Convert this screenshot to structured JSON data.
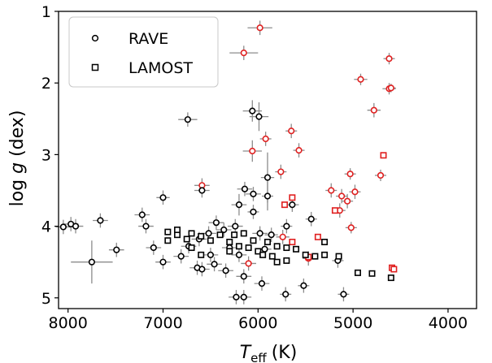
{
  "chart_data": {
    "type": "scatter",
    "x_axis": {
      "label_main": "T",
      "label_sub": "eff",
      "label_unit": "(K)",
      "range": [
        8100,
        3700
      ],
      "ticks": [
        8000,
        7000,
        6000,
        5000,
        4000
      ],
      "tick_labels": [
        "8000",
        "7000",
        "6000",
        "5000",
        "4000"
      ]
    },
    "y_axis": {
      "label_pre": "log ",
      "label_var": "g",
      "label_post": " (dex)",
      "range": [
        1,
        5.15
      ],
      "inverted": true,
      "ticks": [
        1,
        2,
        3,
        4,
        5
      ],
      "tick_labels": [
        "1",
        "2",
        "3",
        "4",
        "5"
      ]
    },
    "grid": false,
    "legend": {
      "placement": "top-left",
      "entries": [
        {
          "label": "RAVE",
          "marker": "circle"
        },
        {
          "label": "LAMOST",
          "marker": "square"
        }
      ]
    },
    "colors": {
      "black": "#000000",
      "red": "#e02020",
      "error": "#8c8c8c"
    },
    "series": [
      {
        "name": "RAVE",
        "marker": "circle",
        "points": [
          {
            "x": 5980,
            "y": 1.23,
            "xerr": 130,
            "yerr": 0.1,
            "color": "red"
          },
          {
            "x": 6150,
            "y": 1.58,
            "xerr": 150,
            "yerr": 0.1,
            "color": "red"
          },
          {
            "x": 4620,
            "y": 1.66,
            "xerr": 60,
            "yerr": 0.08,
            "color": "red"
          },
          {
            "x": 4920,
            "y": 1.95,
            "xerr": 70,
            "yerr": 0.08,
            "color": "red"
          },
          {
            "x": 4620,
            "y": 2.08,
            "xerr": 70,
            "yerr": 0.08,
            "color": "red"
          },
          {
            "x": 4600,
            "y": 2.07,
            "xerr": 50,
            "yerr": 0.06,
            "color": "red"
          },
          {
            "x": 4780,
            "y": 2.38,
            "xerr": 70,
            "yerr": 0.1,
            "color": "red"
          },
          {
            "x": 6060,
            "y": 2.39,
            "xerr": 100,
            "yerr": 0.15,
            "color": "black"
          },
          {
            "x": 5990,
            "y": 2.47,
            "xerr": 100,
            "yerr": 0.2,
            "color": "black"
          },
          {
            "x": 6740,
            "y": 2.51,
            "xerr": 100,
            "yerr": 0.1,
            "color": "black"
          },
          {
            "x": 5650,
            "y": 2.67,
            "xerr": 60,
            "yerr": 0.1,
            "color": "red"
          },
          {
            "x": 5920,
            "y": 2.78,
            "xerr": 60,
            "yerr": 0.1,
            "color": "red"
          },
          {
            "x": 6060,
            "y": 2.95,
            "xerr": 100,
            "yerr": 0.15,
            "color": "red"
          },
          {
            "x": 5570,
            "y": 2.94,
            "xerr": 60,
            "yerr": 0.1,
            "color": "red"
          },
          {
            "x": 5760,
            "y": 3.24,
            "xerr": 60,
            "yerr": 0.1,
            "color": "red"
          },
          {
            "x": 5030,
            "y": 3.27,
            "xerr": 60,
            "yerr": 0.08,
            "color": "red"
          },
          {
            "x": 4710,
            "y": 3.29,
            "xerr": 60,
            "yerr": 0.08,
            "color": "red"
          },
          {
            "x": 5900,
            "y": 3.32,
            "xerr": 70,
            "yerr": 0.35,
            "color": "black"
          },
          {
            "x": 6590,
            "y": 3.43,
            "xerr": 80,
            "yerr": 0.1,
            "color": "red"
          },
          {
            "x": 6590,
            "y": 3.5,
            "xerr": 80,
            "yerr": 0.1,
            "color": "black"
          },
          {
            "x": 5230,
            "y": 3.5,
            "xerr": 60,
            "yerr": 0.1,
            "color": "red"
          },
          {
            "x": 6140,
            "y": 3.48,
            "xerr": 80,
            "yerr": 0.1,
            "color": "black"
          },
          {
            "x": 6050,
            "y": 3.55,
            "xerr": 80,
            "yerr": 0.1,
            "color": "black"
          },
          {
            "x": 4980,
            "y": 3.52,
            "xerr": 60,
            "yerr": 0.1,
            "color": "red"
          },
          {
            "x": 5120,
            "y": 3.58,
            "xerr": 60,
            "yerr": 0.1,
            "color": "red"
          },
          {
            "x": 7000,
            "y": 3.6,
            "xerr": 70,
            "yerr": 0.1,
            "color": "black"
          },
          {
            "x": 5900,
            "y": 3.58,
            "xerr": 60,
            "yerr": 0.2,
            "color": "black"
          },
          {
            "x": 5060,
            "y": 3.65,
            "xerr": 60,
            "yerr": 0.1,
            "color": "red"
          },
          {
            "x": 5640,
            "y": 3.7,
            "xerr": 70,
            "yerr": 0.1,
            "color": "black"
          },
          {
            "x": 6200,
            "y": 3.7,
            "xerr": 80,
            "yerr": 0.15,
            "color": "black"
          },
          {
            "x": 5140,
            "y": 3.78,
            "xerr": 60,
            "yerr": 0.1,
            "color": "red"
          },
          {
            "x": 7220,
            "y": 3.84,
            "xerr": 80,
            "yerr": 0.1,
            "color": "black"
          },
          {
            "x": 6050,
            "y": 3.8,
            "xerr": 60,
            "yerr": 0.1,
            "color": "black"
          },
          {
            "x": 7660,
            "y": 3.92,
            "xerr": 80,
            "yerr": 0.1,
            "color": "black"
          },
          {
            "x": 5440,
            "y": 3.9,
            "xerr": 60,
            "yerr": 0.1,
            "color": "black"
          },
          {
            "x": 7970,
            "y": 3.97,
            "xerr": 80,
            "yerr": 0.1,
            "color": "black"
          },
          {
            "x": 6440,
            "y": 3.95,
            "xerr": 80,
            "yerr": 0.1,
            "color": "black"
          },
          {
            "x": 7920,
            "y": 4.0,
            "xerr": 80,
            "yerr": 0.1,
            "color": "black"
          },
          {
            "x": 8050,
            "y": 4.01,
            "xerr": 80,
            "yerr": 0.1,
            "color": "black"
          },
          {
            "x": 7180,
            "y": 4.0,
            "xerr": 80,
            "yerr": 0.1,
            "color": "black"
          },
          {
            "x": 6240,
            "y": 4.0,
            "xerr": 80,
            "yerr": 0.1,
            "color": "black"
          },
          {
            "x": 5700,
            "y": 4.0,
            "xerr": 60,
            "yerr": 0.1,
            "color": "black"
          },
          {
            "x": 5020,
            "y": 4.02,
            "xerr": 60,
            "yerr": 0.08,
            "color": "red"
          },
          {
            "x": 6360,
            "y": 4.05,
            "xerr": 80,
            "yerr": 0.1,
            "color": "black"
          },
          {
            "x": 6520,
            "y": 4.1,
            "xerr": 80,
            "yerr": 0.1,
            "color": "black"
          },
          {
            "x": 5980,
            "y": 4.1,
            "xerr": 80,
            "yerr": 0.1,
            "color": "black"
          },
          {
            "x": 5860,
            "y": 4.12,
            "xerr": 70,
            "yerr": 0.1,
            "color": "black"
          },
          {
            "x": 5740,
            "y": 4.15,
            "xerr": 70,
            "yerr": 0.1,
            "color": "red"
          },
          {
            "x": 6620,
            "y": 4.18,
            "xerr": 80,
            "yerr": 0.1,
            "color": "black"
          },
          {
            "x": 7100,
            "y": 4.3,
            "xerr": 80,
            "yerr": 0.1,
            "color": "black"
          },
          {
            "x": 7490,
            "y": 4.33,
            "xerr": 80,
            "yerr": 0.1,
            "color": "black"
          },
          {
            "x": 6730,
            "y": 4.28,
            "xerr": 80,
            "yerr": 0.1,
            "color": "black"
          },
          {
            "x": 6300,
            "y": 4.3,
            "xerr": 80,
            "yerr": 0.1,
            "color": "black"
          },
          {
            "x": 5930,
            "y": 4.32,
            "xerr": 70,
            "yerr": 0.1,
            "color": "black"
          },
          {
            "x": 6200,
            "y": 4.4,
            "xerr": 80,
            "yerr": 0.1,
            "color": "black"
          },
          {
            "x": 6500,
            "y": 4.4,
            "xerr": 80,
            "yerr": 0.1,
            "color": "black"
          },
          {
            "x": 6810,
            "y": 4.42,
            "xerr": 80,
            "yerr": 0.1,
            "color": "black"
          },
          {
            "x": 5470,
            "y": 4.45,
            "xerr": 60,
            "yerr": 0.1,
            "color": "red"
          },
          {
            "x": 5160,
            "y": 4.48,
            "xerr": 60,
            "yerr": 0.1,
            "color": "black"
          },
          {
            "x": 7000,
            "y": 4.5,
            "xerr": 80,
            "yerr": 0.1,
            "color": "black"
          },
          {
            "x": 7750,
            "y": 4.5,
            "xerr": 220,
            "yerr": 0.3,
            "color": "black"
          },
          {
            "x": 6100,
            "y": 4.52,
            "xerr": 80,
            "yerr": 0.1,
            "color": "red"
          },
          {
            "x": 6460,
            "y": 4.53,
            "xerr": 80,
            "yerr": 0.1,
            "color": "black"
          },
          {
            "x": 6640,
            "y": 4.58,
            "xerr": 80,
            "yerr": 0.1,
            "color": "black"
          },
          {
            "x": 6590,
            "y": 4.6,
            "xerr": 80,
            "yerr": 0.1,
            "color": "black"
          },
          {
            "x": 6340,
            "y": 4.62,
            "xerr": 80,
            "yerr": 0.1,
            "color": "black"
          },
          {
            "x": 6150,
            "y": 4.7,
            "xerr": 80,
            "yerr": 0.1,
            "color": "black"
          },
          {
            "x": 5960,
            "y": 4.8,
            "xerr": 80,
            "yerr": 0.1,
            "color": "black"
          },
          {
            "x": 5520,
            "y": 4.83,
            "xerr": 60,
            "yerr": 0.1,
            "color": "black"
          },
          {
            "x": 5710,
            "y": 4.95,
            "xerr": 60,
            "yerr": 0.1,
            "color": "black"
          },
          {
            "x": 5100,
            "y": 4.95,
            "xerr": 60,
            "yerr": 0.1,
            "color": "black"
          },
          {
            "x": 6230,
            "y": 4.99,
            "xerr": 80,
            "yerr": 0.1,
            "color": "black"
          },
          {
            "x": 6150,
            "y": 4.99,
            "xerr": 80,
            "yerr": 0.1,
            "color": "black"
          }
        ]
      },
      {
        "name": "LAMOST",
        "marker": "square",
        "points": [
          {
            "x": 4680,
            "y": 3.01,
            "color": "red"
          },
          {
            "x": 5640,
            "y": 3.6,
            "color": "red"
          },
          {
            "x": 5720,
            "y": 3.7,
            "color": "red"
          },
          {
            "x": 5190,
            "y": 3.78,
            "color": "red"
          },
          {
            "x": 5370,
            "y": 4.15,
            "color": "red"
          },
          {
            "x": 5640,
            "y": 4.22,
            "color": "red"
          },
          {
            "x": 5470,
            "y": 4.43,
            "color": "red"
          },
          {
            "x": 4590,
            "y": 4.58,
            "color": "red"
          },
          {
            "x": 4570,
            "y": 4.6,
            "color": "red"
          },
          {
            "x": 6050,
            "y": 4.2,
            "color": "black"
          },
          {
            "x": 6150,
            "y": 4.1,
            "color": "black"
          },
          {
            "x": 6250,
            "y": 4.12,
            "color": "black"
          },
          {
            "x": 5900,
            "y": 4.22,
            "color": "black"
          },
          {
            "x": 5800,
            "y": 4.28,
            "color": "black"
          },
          {
            "x": 5700,
            "y": 4.3,
            "color": "black"
          },
          {
            "x": 5600,
            "y": 4.32,
            "color": "black"
          },
          {
            "x": 6000,
            "y": 4.35,
            "color": "black"
          },
          {
            "x": 5950,
            "y": 4.4,
            "color": "black"
          },
          {
            "x": 5850,
            "y": 4.42,
            "color": "black"
          },
          {
            "x": 6400,
            "y": 4.12,
            "color": "black"
          },
          {
            "x": 6600,
            "y": 4.14,
            "color": "black"
          },
          {
            "x": 6700,
            "y": 4.1,
            "color": "black"
          },
          {
            "x": 6850,
            "y": 4.12,
            "color": "black"
          },
          {
            "x": 6850,
            "y": 4.05,
            "color": "black"
          },
          {
            "x": 6950,
            "y": 4.08,
            "color": "black"
          },
          {
            "x": 6950,
            "y": 4.2,
            "color": "black"
          },
          {
            "x": 6750,
            "y": 4.18,
            "color": "black"
          },
          {
            "x": 6500,
            "y": 4.2,
            "color": "black"
          },
          {
            "x": 6300,
            "y": 4.22,
            "color": "black"
          },
          {
            "x": 6200,
            "y": 4.28,
            "color": "black"
          },
          {
            "x": 6100,
            "y": 4.3,
            "color": "black"
          },
          {
            "x": 6300,
            "y": 4.35,
            "color": "black"
          },
          {
            "x": 5500,
            "y": 4.4,
            "color": "black"
          },
          {
            "x": 5400,
            "y": 4.42,
            "color": "black"
          },
          {
            "x": 5300,
            "y": 4.4,
            "color": "black"
          },
          {
            "x": 5150,
            "y": 4.42,
            "color": "black"
          },
          {
            "x": 5700,
            "y": 4.48,
            "color": "black"
          },
          {
            "x": 5800,
            "y": 4.5,
            "color": "black"
          },
          {
            "x": 6700,
            "y": 4.3,
            "color": "black"
          },
          {
            "x": 6600,
            "y": 4.4,
            "color": "black"
          },
          {
            "x": 4950,
            "y": 4.65,
            "color": "black"
          },
          {
            "x": 4800,
            "y": 4.66,
            "color": "black"
          },
          {
            "x": 4600,
            "y": 4.72,
            "color": "black"
          },
          {
            "x": 5300,
            "y": 4.22,
            "color": "black"
          }
        ]
      }
    ]
  }
}
